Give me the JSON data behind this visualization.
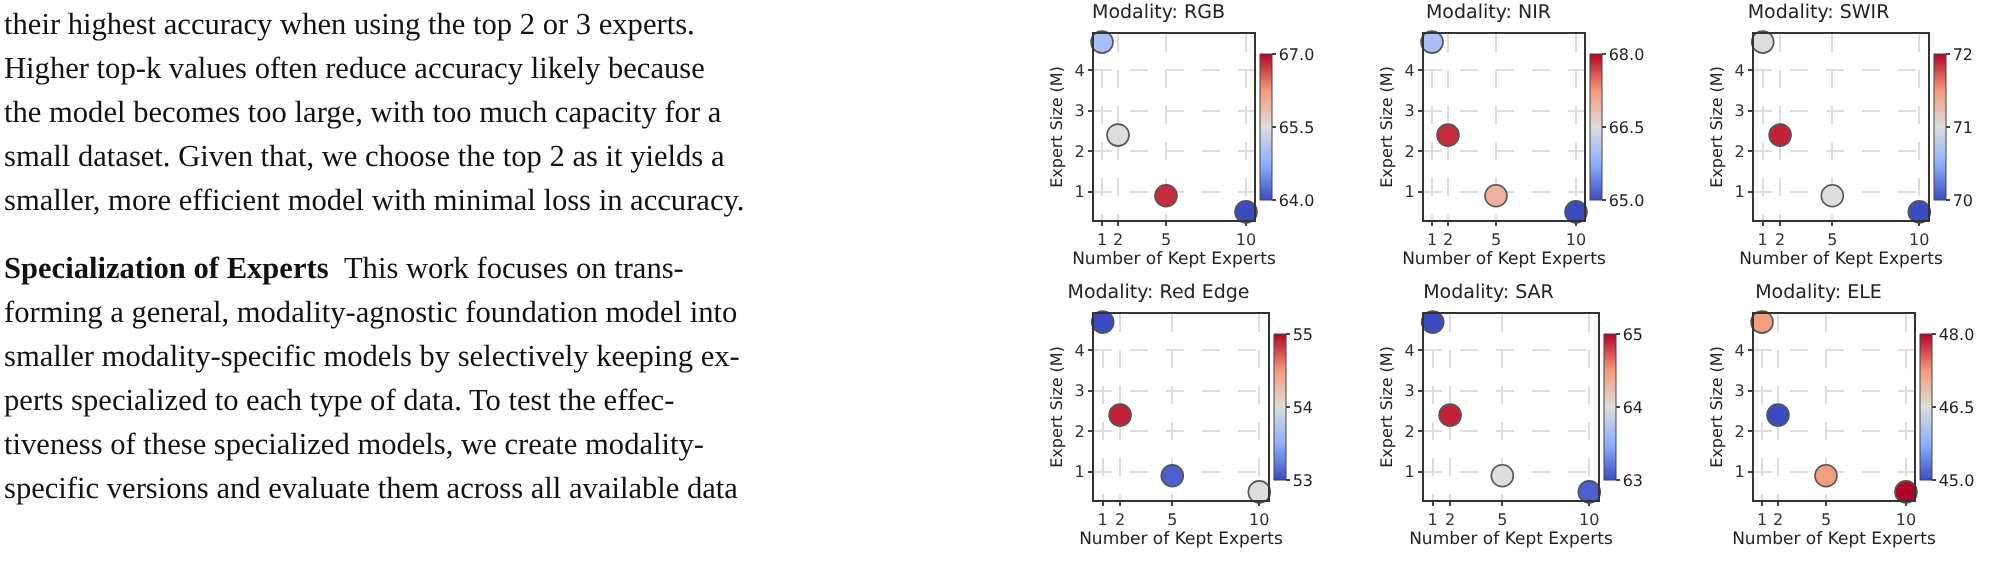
{
  "chart_data": [
    {
      "type": "other",
      "title": "Specialization of Experts",
      "annotations": [
        "their highest accuracy when using the top 2 or 3 experts.",
        "Higher top-k values often reduce accuracy likely because",
        "the model becomes too large, with too much capacity for a",
        "small dataset. Given that, we choose the top 2 as it yields a",
        "smaller, more efficient model with minimal loss in accuracy.",
        "This work focuses on trans-",
        "forming a general, modality-agnostic foundation model into",
        "smaller modality-specific models by selectively keeping ex-",
        "perts specialized to each type of data. To test the effec-",
        "tiveness of these specialized models, we create modality-",
        "specific versions and evaluate them across all available data"
      ]
    },
    {
      "type": "scatter",
      "title": "Modality: RGB",
      "xlabel": "Number of Kept Experts",
      "ylabel": "Expert Size (M)",
      "x": [
        1,
        2,
        5,
        10
      ],
      "values": [
        4.7,
        2.4,
        0.9,
        0.5
      ],
      "cvalues": [
        65.0,
        65.5,
        66.8,
        64.0
      ],
      "clim": [
        64,
        67
      ],
      "cticks": [
        {
          "value": 64,
          "label": "64.0"
        },
        {
          "value": 65.5,
          "label": "65.5"
        },
        {
          "value": 67,
          "label": "67.0"
        }
      ],
      "xlim": [
        0.5,
        10.5
      ],
      "xticks": [
        1,
        2,
        5,
        10
      ],
      "ylim": [
        0.3,
        4.9
      ],
      "yticks": [
        1,
        2,
        3,
        4
      ],
      "grid": true,
      "marker": "circle"
    },
    {
      "type": "scatter",
      "title": "Modality: NIR",
      "xlabel": "Number of Kept Experts",
      "ylabel": "Expert Size (M)",
      "x": [
        1,
        2,
        5,
        10
      ],
      "values": [
        4.7,
        2.4,
        0.9,
        0.5
      ],
      "cvalues": [
        66.0,
        67.8,
        67.0,
        65.0
      ],
      "clim": [
        65,
        68
      ],
      "cticks": [
        {
          "value": 65,
          "label": "65.0"
        },
        {
          "value": 66.5,
          "label": "66.5"
        },
        {
          "value": 68,
          "label": "68.0"
        }
      ],
      "xlim": [
        0.5,
        10.5
      ],
      "xticks": [
        1,
        2,
        5,
        10
      ],
      "ylim": [
        0.3,
        4.9
      ],
      "yticks": [
        1,
        2,
        3,
        4
      ],
      "grid": true,
      "marker": "circle"
    },
    {
      "type": "scatter",
      "title": "Modality: SWIR",
      "xlabel": "Number of Kept Experts",
      "ylabel": "Expert Size (M)",
      "x": [
        1,
        2,
        5,
        10
      ],
      "values": [
        4.7,
        2.4,
        0.9,
        0.5
      ],
      "cvalues": [
        71.0,
        71.9,
        71.0,
        70.0
      ],
      "clim": [
        70,
        72
      ],
      "cticks": [
        70,
        71,
        72
      ],
      "xlim": [
        0.5,
        10.5
      ],
      "xticks": [
        1,
        2,
        5,
        10
      ],
      "ylim": [
        0.3,
        4.9
      ],
      "yticks": [
        1,
        2,
        3,
        4
      ],
      "grid": true,
      "marker": "circle"
    },
    {
      "type": "scatter",
      "title": "Modality: Red Edge",
      "xlabel": "Number of Kept Experts",
      "ylabel": "Expert Size (M)",
      "x": [
        1,
        2,
        5,
        10
      ],
      "values": [
        4.7,
        2.4,
        0.9,
        0.5
      ],
      "cvalues": [
        53.0,
        54.9,
        53.1,
        54.0
      ],
      "clim": [
        53,
        55
      ],
      "cticks": [
        53,
        54,
        55
      ],
      "xlim": [
        0.5,
        10.5
      ],
      "xticks": [
        1,
        2,
        5,
        10
      ],
      "ylim": [
        0.3,
        4.9
      ],
      "yticks": [
        1,
        2,
        3,
        4
      ],
      "grid": true,
      "marker": "circle"
    },
    {
      "type": "scatter",
      "title": "Modality: SAR",
      "xlabel": "Number of Kept Experts",
      "ylabel": "Expert Size (M)",
      "x": [
        1,
        2,
        5,
        10
      ],
      "values": [
        4.7,
        2.4,
        0.9,
        0.5
      ],
      "cvalues": [
        63.0,
        64.9,
        64.0,
        63.1
      ],
      "clim": [
        63,
        65
      ],
      "cticks": [
        63,
        64,
        65
      ],
      "xlim": [
        0.5,
        10.5
      ],
      "xticks": [
        1,
        2,
        5,
        10
      ],
      "ylim": [
        0.3,
        4.9
      ],
      "yticks": [
        1,
        2,
        3,
        4
      ],
      "grid": true,
      "marker": "circle"
    },
    {
      "type": "scatter",
      "title": "Modality: ELE",
      "xlabel": "Number of Kept Experts",
      "ylabel": "Expert Size (M)",
      "x": [
        1,
        2,
        5,
        10
      ],
      "values": [
        4.7,
        2.4,
        0.9,
        0.5
      ],
      "cvalues": [
        47.2,
        45.0,
        47.2,
        48.0
      ],
      "clim": [
        45,
        48
      ],
      "cticks": [
        {
          "value": 45,
          "label": "45.0"
        },
        {
          "value": 46.5,
          "label": "46.5"
        },
        {
          "value": 48,
          "label": "48.0"
        }
      ],
      "xlim": [
        0.5,
        10.5
      ],
      "xticks": [
        1,
        2,
        5,
        10
      ],
      "ylim": [
        0.3,
        4.9
      ],
      "yticks": [
        1,
        2,
        3,
        4
      ],
      "grid": true,
      "marker": "circle"
    }
  ]
}
